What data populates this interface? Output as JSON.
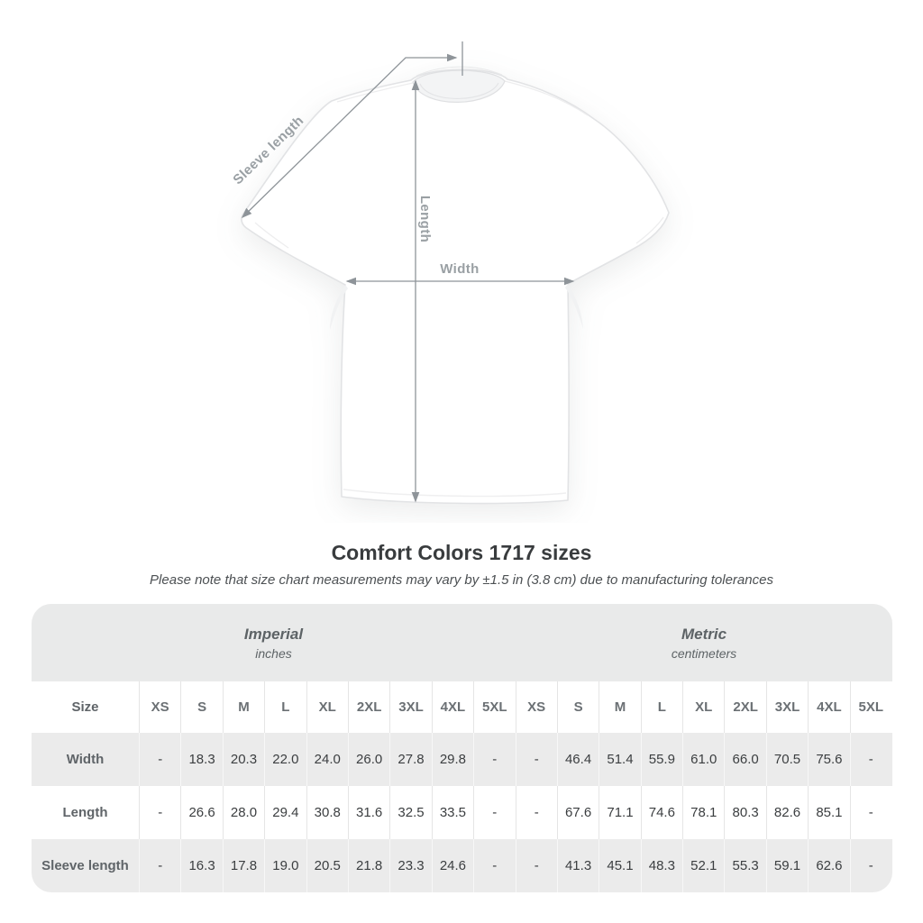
{
  "diagram": {
    "labels": {
      "sleeve_length": "Sleeve length",
      "length": "Length",
      "width": "Width"
    },
    "colors": {
      "arrow": "#8e9499",
      "label": "#9aa0a4",
      "shirt_outline": "#e2e3e5"
    }
  },
  "heading": {
    "title": "Comfort Colors 1717 sizes",
    "subtitle": "Please note that size chart measurements may vary by ±1.5 in (3.8 cm) due to manufacturing tolerances"
  },
  "table": {
    "unit_groups": [
      {
        "name": "Imperial",
        "unit": "inches"
      },
      {
        "name": "Metric",
        "unit": "centimeters"
      }
    ],
    "size_col_label": "Size",
    "sizes": [
      "XS",
      "S",
      "M",
      "L",
      "XL",
      "2XL",
      "3XL",
      "4XL",
      "5XL"
    ],
    "rows": [
      {
        "label": "Width",
        "imperial": [
          "-",
          "18.3",
          "20.3",
          "22.0",
          "24.0",
          "26.0",
          "27.8",
          "29.8",
          "-"
        ],
        "metric": [
          "-",
          "46.4",
          "51.4",
          "55.9",
          "61.0",
          "66.0",
          "70.5",
          "75.6",
          "-"
        ]
      },
      {
        "label": "Length",
        "imperial": [
          "-",
          "26.6",
          "28.0",
          "29.4",
          "30.8",
          "31.6",
          "32.5",
          "33.5",
          "-"
        ],
        "metric": [
          "-",
          "67.6",
          "71.1",
          "74.6",
          "78.1",
          "80.3",
          "82.6",
          "85.1",
          "-"
        ]
      },
      {
        "label": "Sleeve length",
        "imperial": [
          "-",
          "16.3",
          "17.8",
          "19.0",
          "20.5",
          "21.8",
          "23.3",
          "24.6",
          "-"
        ],
        "metric": [
          "-",
          "41.3",
          "45.1",
          "48.3",
          "52.1",
          "55.3",
          "59.1",
          "62.6",
          "-"
        ]
      }
    ],
    "colors": {
      "band": "#e9eaea",
      "row_alt": "#ebebeb",
      "header_text": "#6b7074",
      "cell_text": "#3b3e40"
    }
  }
}
